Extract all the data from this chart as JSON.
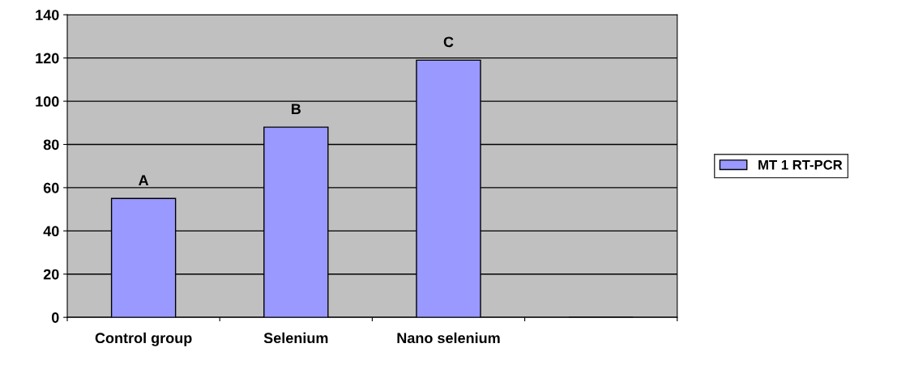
{
  "chart_data": {
    "type": "bar",
    "categories": [
      "Control group",
      "Selenium",
      "Nano selenium",
      null
    ],
    "series": [
      {
        "name": "MT 1 RT-PCR",
        "color": "#9999ff",
        "values": [
          55,
          88,
          119,
          null
        ]
      }
    ],
    "ylim": [
      0,
      140
    ],
    "yticks": [
      0,
      20,
      40,
      60,
      80,
      100,
      120,
      140
    ],
    "grid": "y",
    "legend": "right",
    "annotations": [
      {
        "text": "A",
        "x": "Control group",
        "y": 55
      },
      {
        "text": "B",
        "x": "Selenium",
        "y": 88
      },
      {
        "text": "C",
        "x": "Nano selenium",
        "y": 119
      }
    ]
  }
}
